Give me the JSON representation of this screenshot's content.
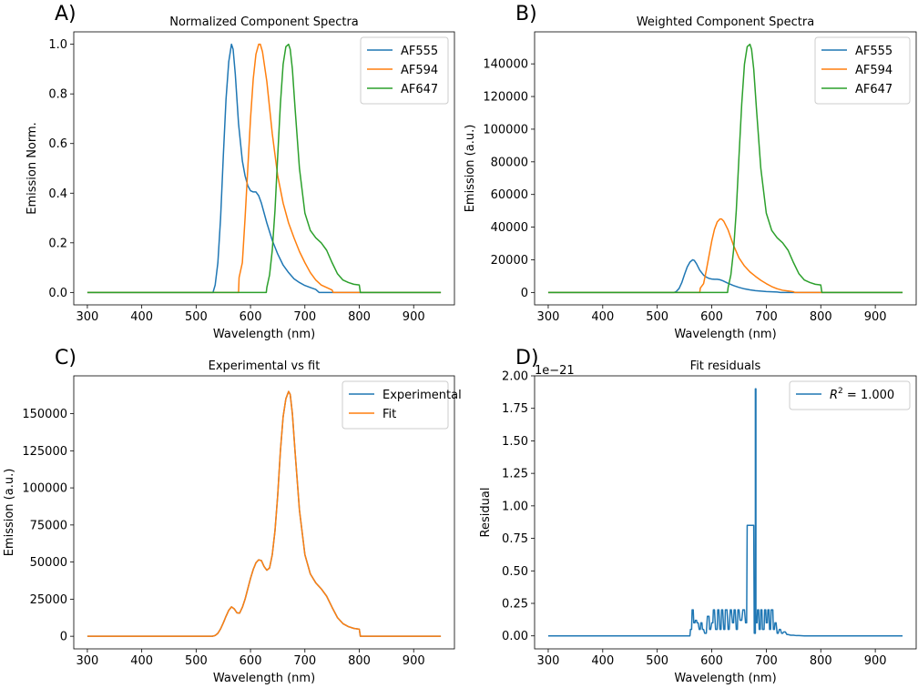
{
  "chart_data": [
    {
      "type": "line",
      "panel_label": "A)",
      "title": "Normalized Component Spectra",
      "xlabel": "Wavelength (nm)",
      "ylabel": "Emission Norm.",
      "xlim": [
        275,
        975
      ],
      "ylim": [
        -0.05,
        1.05
      ],
      "xticks": [
        300,
        400,
        500,
        600,
        700,
        800,
        900
      ],
      "yticks": [
        0.0,
        0.2,
        0.4,
        0.6,
        0.8,
        1.0
      ],
      "ytick_labels": [
        "0.0",
        "0.2",
        "0.4",
        "0.6",
        "0.8",
        "1.0"
      ],
      "legend": "top-right",
      "series": [
        {
          "name": "AF555",
          "color": "#1f77b4",
          "x": [
            300,
            531,
            535,
            540,
            545,
            550,
            555,
            560,
            565,
            568,
            572,
            578,
            585,
            590,
            595,
            600,
            605,
            610,
            615,
            620,
            630,
            640,
            650,
            660,
            670,
            680,
            690,
            700,
            710,
            720,
            723,
            726,
            800,
            950
          ],
          "y": [
            0,
            0,
            0.03,
            0.12,
            0.3,
            0.55,
            0.78,
            0.93,
            1.0,
            0.98,
            0.88,
            0.68,
            0.53,
            0.47,
            0.43,
            0.41,
            0.405,
            0.405,
            0.39,
            0.36,
            0.28,
            0.21,
            0.155,
            0.11,
            0.08,
            0.055,
            0.04,
            0.028,
            0.02,
            0.012,
            0.006,
            0,
            0,
            0
          ]
        },
        {
          "name": "AF594",
          "color": "#ff7f0e",
          "x": [
            300,
            578,
            579,
            585,
            590,
            595,
            600,
            605,
            610,
            615,
            618,
            622,
            630,
            640,
            650,
            660,
            670,
            680,
            690,
            700,
            710,
            720,
            730,
            740,
            745,
            750,
            752,
            800,
            950
          ],
          "y": [
            0,
            0,
            0.06,
            0.12,
            0.3,
            0.5,
            0.7,
            0.86,
            0.96,
            1.0,
            1.0,
            0.97,
            0.85,
            0.64,
            0.47,
            0.36,
            0.28,
            0.22,
            0.165,
            0.12,
            0.08,
            0.05,
            0.03,
            0.02,
            0.015,
            0.01,
            0,
            0,
            0
          ]
        },
        {
          "name": "AF647",
          "color": "#2ca02c",
          "x": [
            300,
            629,
            630,
            635,
            640,
            645,
            650,
            655,
            660,
            665,
            670,
            673,
            677,
            682,
            690,
            700,
            710,
            720,
            730,
            740,
            750,
            760,
            770,
            780,
            790,
            800,
            802,
            950
          ],
          "y": [
            0,
            0,
            0.02,
            0.07,
            0.17,
            0.33,
            0.55,
            0.76,
            0.92,
            0.99,
            1.0,
            0.98,
            0.9,
            0.74,
            0.5,
            0.32,
            0.25,
            0.22,
            0.2,
            0.17,
            0.12,
            0.075,
            0.05,
            0.04,
            0.033,
            0.03,
            0,
            0
          ]
        }
      ]
    },
    {
      "type": "line",
      "panel_label": "B)",
      "title": "Weighted Component Spectra",
      "xlabel": "Wavelength (nm)",
      "ylabel": "Emission (a.u.)",
      "xlim": [
        275,
        975
      ],
      "ylim": [
        -7600,
        159600
      ],
      "xticks": [
        300,
        400,
        500,
        600,
        700,
        800,
        900
      ],
      "yticks": [
        0,
        20000,
        40000,
        60000,
        80000,
        100000,
        120000,
        140000
      ],
      "ytick_labels": [
        "0",
        "20000",
        "40000",
        "60000",
        "80000",
        "100000",
        "120000",
        "140000"
      ],
      "legend": "top-right",
      "series": [
        {
          "name": "AF555",
          "color": "#1f77b4",
          "x": [
            300,
            531,
            535,
            540,
            545,
            550,
            555,
            560,
            565,
            568,
            572,
            578,
            585,
            590,
            595,
            600,
            605,
            610,
            615,
            620,
            630,
            640,
            650,
            660,
            670,
            680,
            690,
            700,
            710,
            720,
            723,
            726,
            800,
            950
          ],
          "y": [
            0,
            0,
            600,
            2400,
            6000,
            11000,
            15600,
            18600,
            20000,
            19600,
            17600,
            13600,
            10600,
            9400,
            8600,
            8200,
            8100,
            8100,
            7800,
            7200,
            5600,
            4200,
            3100,
            2200,
            1600,
            1100,
            800,
            560,
            400,
            240,
            120,
            0,
            0,
            0
          ]
        },
        {
          "name": "AF594",
          "color": "#ff7f0e",
          "x": [
            300,
            578,
            579,
            585,
            590,
            595,
            600,
            605,
            610,
            615,
            618,
            622,
            630,
            640,
            650,
            660,
            670,
            680,
            690,
            700,
            710,
            720,
            730,
            740,
            745,
            750,
            752,
            800,
            950
          ],
          "y": [
            0,
            0,
            2700,
            5400,
            13500,
            22500,
            31500,
            38700,
            43200,
            45000,
            45000,
            43650,
            38250,
            28800,
            21150,
            16200,
            12600,
            9900,
            7425,
            5400,
            3600,
            2250,
            1350,
            900,
            675,
            450,
            0,
            0,
            0
          ]
        },
        {
          "name": "AF647",
          "color": "#2ca02c",
          "x": [
            300,
            629,
            630,
            635,
            640,
            645,
            650,
            655,
            660,
            665,
            670,
            673,
            677,
            682,
            690,
            700,
            710,
            720,
            730,
            740,
            750,
            760,
            770,
            780,
            790,
            800,
            802,
            950
          ],
          "y": [
            0,
            0,
            3040,
            10640,
            25840,
            50160,
            83600,
            115520,
            139840,
            150480,
            152000,
            148960,
            136800,
            112480,
            76000,
            48640,
            38000,
            33440,
            30400,
            25840,
            18240,
            11400,
            7600,
            6080,
            5016,
            4560,
            0,
            0
          ]
        }
      ]
    },
    {
      "type": "line",
      "panel_label": "C)",
      "title": "Experimental vs fit",
      "xlabel": "Wavelength (nm)",
      "ylabel": "Emission (a.u.)",
      "xlim": [
        275,
        975
      ],
      "ylim": [
        -8500,
        175500
      ],
      "xticks": [
        300,
        400,
        500,
        600,
        700,
        800,
        900
      ],
      "yticks": [
        0,
        25000,
        50000,
        75000,
        100000,
        125000,
        150000
      ],
      "ytick_labels": [
        "0",
        "25000",
        "50000",
        "75000",
        "100000",
        "125000",
        "150000"
      ],
      "legend": "top-right",
      "series": [
        {
          "name": "Experimental",
          "color": "#1f77b4",
          "x": [
            300,
            530,
            535,
            540,
            545,
            550,
            555,
            560,
            565,
            570,
            575,
            580,
            585,
            590,
            595,
            600,
            605,
            610,
            615,
            620,
            625,
            630,
            635,
            640,
            645,
            650,
            655,
            660,
            665,
            670,
            673,
            677,
            682,
            690,
            700,
            710,
            720,
            730,
            740,
            750,
            760,
            770,
            780,
            790,
            800,
            802,
            950
          ],
          "y": [
            0,
            0,
            500,
            2000,
            5000,
            9000,
            13500,
            17500,
            19800,
            18500,
            15800,
            15600,
            19500,
            25000,
            32000,
            39000,
            45000,
            49500,
            51500,
            51000,
            47000,
            44500,
            46000,
            55000,
            71000,
            95000,
            125000,
            148000,
            160000,
            165000,
            163000,
            150000,
            124000,
            85000,
            55000,
            42000,
            36000,
            32000,
            27000,
            19500,
            12500,
            8500,
            6500,
            5300,
            4800,
            0,
            0
          ]
        },
        {
          "name": "Fit",
          "color": "#ff7f0e",
          "x": [
            300,
            530,
            535,
            540,
            545,
            550,
            555,
            560,
            565,
            570,
            575,
            580,
            585,
            590,
            595,
            600,
            605,
            610,
            615,
            620,
            625,
            630,
            635,
            640,
            645,
            650,
            655,
            660,
            665,
            670,
            673,
            677,
            682,
            690,
            700,
            710,
            720,
            730,
            740,
            750,
            760,
            770,
            780,
            790,
            800,
            802,
            950
          ],
          "y": [
            0,
            0,
            500,
            2000,
            5000,
            9000,
            13500,
            17500,
            19800,
            18500,
            15800,
            15600,
            19500,
            25000,
            32000,
            39000,
            45000,
            49500,
            51500,
            51000,
            47000,
            44500,
            46000,
            55000,
            71000,
            95000,
            125000,
            148000,
            160000,
            165000,
            163000,
            150000,
            124000,
            85000,
            55000,
            42000,
            36000,
            32000,
            27000,
            19500,
            12500,
            8500,
            6500,
            5300,
            4800,
            0,
            0
          ]
        }
      ]
    },
    {
      "type": "line",
      "panel_label": "D)",
      "title": "Fit residuals",
      "xlabel": "Wavelength (nm)",
      "ylabel": "Residual",
      "y_offset_text": "1e−21",
      "xlim": [
        275,
        975
      ],
      "ylim": [
        -0.1,
        2.0
      ],
      "xticks": [
        300,
        400,
        500,
        600,
        700,
        800,
        900
      ],
      "yticks": [
        0.0,
        0.25,
        0.5,
        0.75,
        1.0,
        1.25,
        1.5,
        1.75,
        2.0
      ],
      "ytick_labels": [
        "0.00",
        "0.25",
        "0.50",
        "0.75",
        "1.00",
        "1.25",
        "1.50",
        "1.75",
        "2.00"
      ],
      "legend": "top-right",
      "series": [
        {
          "name": "R² = 1.000",
          "legend_label": "R",
          "legend_sup": "2",
          "legend_rest": " = 1.000",
          "color": "#1f77b4",
          "x": [
            300,
            560,
            561,
            563,
            564,
            566,
            567,
            569,
            570,
            572,
            573,
            575,
            577,
            579,
            580,
            582,
            583,
            585,
            587,
            590,
            592,
            595,
            596,
            598,
            600,
            602,
            603,
            605,
            607,
            610,
            611,
            613,
            615,
            617,
            618,
            620,
            622,
            624,
            625,
            628,
            630,
            632,
            634,
            636,
            638,
            640,
            641,
            643,
            645,
            647,
            648,
            650,
            652,
            655,
            657,
            660,
            662,
            664,
            665,
            667,
            668,
            670,
            672,
            674,
            675,
            677,
            678,
            680,
            680,
            681,
            681,
            683,
            684,
            686,
            687,
            689,
            690,
            692,
            693,
            696,
            697,
            699,
            700,
            702,
            703,
            705,
            706,
            708,
            709,
            712,
            713,
            715,
            716,
            718,
            720,
            722,
            724,
            726,
            728,
            730,
            732,
            735,
            738,
            740,
            745,
            750,
            755,
            760,
            770,
            780,
            950
          ],
          "y": [
            0,
            0,
            0.05,
            0.05,
            0.2,
            0.2,
            0.1,
            0.1,
            0.12,
            0.12,
            0.1,
            0.1,
            0.05,
            0.05,
            0.1,
            0.1,
            0.05,
            0.05,
            0.02,
            0.02,
            0.15,
            0.15,
            0.05,
            0.05,
            0.1,
            0.1,
            0.2,
            0.2,
            0.05,
            0.05,
            0.2,
            0.2,
            0.05,
            0.05,
            0.2,
            0.2,
            0.05,
            0.05,
            0.2,
            0.2,
            0.05,
            0.05,
            0.2,
            0.2,
            0.1,
            0.1,
            0.2,
            0.2,
            0.05,
            0.05,
            0.2,
            0.2,
            0.12,
            0.12,
            0.2,
            0.2,
            0.1,
            0.1,
            0.85,
            0.85,
            0.85,
            0.85,
            0.85,
            0.85,
            0.85,
            0.85,
            0.02,
            0.02,
            1.9,
            1.9,
            0.1,
            0.1,
            0.2,
            0.2,
            0.05,
            0.05,
            0.2,
            0.2,
            0.05,
            0.05,
            0.2,
            0.2,
            0.1,
            0.1,
            0.2,
            0.2,
            0.05,
            0.05,
            0.2,
            0.2,
            0.05,
            0.05,
            0.1,
            0.1,
            0.02,
            0.02,
            0.05,
            0.05,
            0.02,
            0.02,
            0.03,
            0.03,
            0.01,
            0.01,
            0.005,
            0.005,
            0.002,
            0.002,
            0,
            0,
            0
          ]
        }
      ]
    }
  ]
}
